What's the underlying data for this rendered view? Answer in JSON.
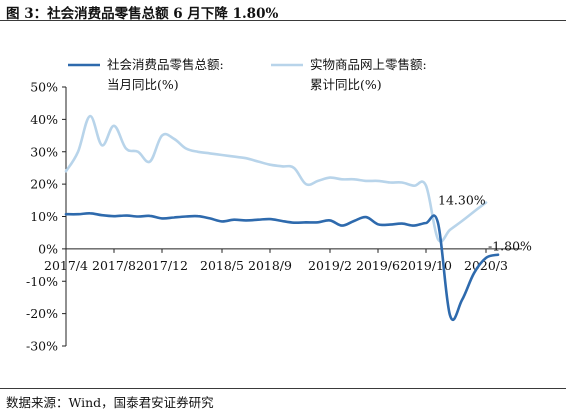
{
  "figure": {
    "title": "图 3：社会消费品零售总额 6 月下降 1.80%",
    "source": "数据来源：Wind，国泰君安证券研究"
  },
  "chart_data": {
    "type": "line",
    "ylim": [
      -30,
      50
    ],
    "yticks": [
      -30,
      -20,
      -10,
      0,
      10,
      20,
      30,
      40,
      50
    ],
    "ytick_labels": [
      "-30%",
      "-20%",
      "-10%",
      "0%",
      "10%",
      "20%",
      "30%",
      "40%",
      "50%"
    ],
    "xlim": [
      "2017-04",
      "2020-06"
    ],
    "xtick_labels": [
      "2017/4",
      "2017/8",
      "2017/12",
      "2018/5",
      "2018/9",
      "2019/2",
      "2019/6",
      "2019/10",
      "2020/3"
    ],
    "xtick_dates": [
      "2017-04",
      "2017-08",
      "2017-12",
      "2018-05",
      "2018-09",
      "2019-02",
      "2019-06",
      "2019-10",
      "2020-03"
    ],
    "x_axis_at": 0,
    "grid": false,
    "legend_position": "top",
    "series": [
      {
        "name": "社会消费品零售总额:当月同比(%)",
        "name_lines": [
          "社会消费品零售总额:",
          "当月同比(%)"
        ],
        "color": "#2e6aad",
        "points": [
          [
            "2017-04",
            10.7
          ],
          [
            "2017-05",
            10.7
          ],
          [
            "2017-06",
            11.0
          ],
          [
            "2017-07",
            10.4
          ],
          [
            "2017-08",
            10.1
          ],
          [
            "2017-09",
            10.3
          ],
          [
            "2017-10",
            10.0
          ],
          [
            "2017-11",
            10.2
          ],
          [
            "2017-12",
            9.4
          ],
          [
            "2018-01",
            9.7
          ],
          [
            "2018-02",
            10.0
          ],
          [
            "2018-03",
            10.1
          ],
          [
            "2018-04",
            9.4
          ],
          [
            "2018-05",
            8.5
          ],
          [
            "2018-06",
            9.0
          ],
          [
            "2018-07",
            8.8
          ],
          [
            "2018-08",
            9.0
          ],
          [
            "2018-09",
            9.2
          ],
          [
            "2018-10",
            8.6
          ],
          [
            "2018-11",
            8.1
          ],
          [
            "2018-12",
            8.2
          ],
          [
            "2019-01",
            8.2
          ],
          [
            "2019-02",
            8.8
          ],
          [
            "2019-03",
            7.2
          ],
          [
            "2019-04",
            8.6
          ],
          [
            "2019-05",
            9.8
          ],
          [
            "2019-06",
            7.6
          ],
          [
            "2019-07",
            7.5
          ],
          [
            "2019-08",
            7.8
          ],
          [
            "2019-09",
            7.2
          ],
          [
            "2019-10",
            8.0
          ],
          [
            "2019-11",
            8.0
          ],
          [
            "2019-12",
            -20.5
          ],
          [
            "2020-01",
            -15.8
          ],
          [
            "2020-02",
            -7.5
          ],
          [
            "2020-03",
            -2.8
          ],
          [
            "2020-04",
            -1.8
          ]
        ],
        "end_label": "-1.80%"
      },
      {
        "name": "实物商品网上零售额:累计同比(%)",
        "name_lines": [
          "实物商品网上零售额:",
          "累计同比(%)"
        ],
        "color": "#b8d4ea",
        "points": [
          [
            "2017-04",
            24
          ],
          [
            "2017-05",
            30
          ],
          [
            "2017-06",
            41
          ],
          [
            "2017-07",
            32
          ],
          [
            "2017-08",
            38
          ],
          [
            "2017-09",
            31
          ],
          [
            "2017-10",
            30
          ],
          [
            "2017-11",
            27
          ],
          [
            "2017-12",
            35
          ],
          [
            "2018-01",
            34
          ],
          [
            "2018-02",
            31
          ],
          [
            "2018-03",
            30
          ],
          [
            "2018-04",
            29.5
          ],
          [
            "2018-05",
            29
          ],
          [
            "2018-06",
            28.5
          ],
          [
            "2018-07",
            28
          ],
          [
            "2018-08",
            27
          ],
          [
            "2018-09",
            26
          ],
          [
            "2018-10",
            25.5
          ],
          [
            "2018-11",
            25
          ],
          [
            "2018-12",
            20
          ],
          [
            "2019-01",
            21
          ],
          [
            "2019-02",
            22
          ],
          [
            "2019-03",
            21.5
          ],
          [
            "2019-04",
            21.5
          ],
          [
            "2019-05",
            21
          ],
          [
            "2019-06",
            21
          ],
          [
            "2019-07",
            20.5
          ],
          [
            "2019-08",
            20.5
          ],
          [
            "2019-09",
            19.5
          ],
          [
            "2019-10",
            19.5
          ],
          [
            "2019-11",
            3
          ],
          [
            "2019-12",
            5.9
          ],
          [
            "2020-01",
            8.6
          ],
          [
            "2020-02",
            11.5
          ],
          [
            "2020-03",
            14.3
          ]
        ],
        "end_label": "14.30%"
      }
    ]
  }
}
